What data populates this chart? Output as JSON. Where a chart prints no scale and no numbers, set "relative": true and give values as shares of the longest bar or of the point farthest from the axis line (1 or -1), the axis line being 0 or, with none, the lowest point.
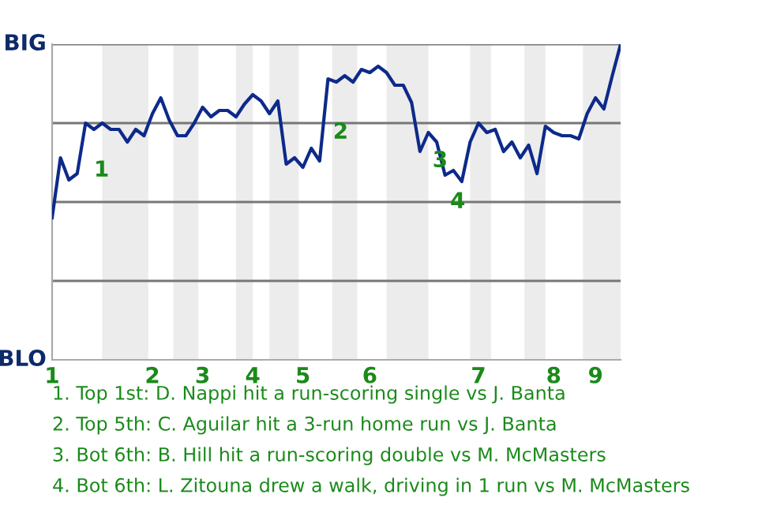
{
  "chart_data": {
    "type": "line",
    "relative": true,
    "categories": [
      "1",
      null,
      null,
      null,
      null,
      null,
      null,
      null,
      null,
      null,
      null,
      null,
      "2",
      null,
      null,
      null,
      null,
      null,
      "3",
      null,
      null,
      null,
      null,
      null,
      "4",
      null,
      null,
      null,
      null,
      null,
      "5",
      null,
      null,
      null,
      null,
      null,
      null,
      null,
      "6",
      null,
      null,
      null,
      null,
      null,
      null,
      null,
      null,
      null,
      null,
      null,
      null,
      "7",
      null,
      null,
      null,
      null,
      null,
      null,
      null,
      null,
      "8",
      null,
      null,
      null,
      null,
      "9",
      null,
      null,
      null
    ],
    "series": [
      {
        "color": "#0d2a8a",
        "values": [
          0.45,
          0.64,
          0.57,
          0.59,
          0.75,
          0.73,
          0.75,
          0.73,
          0.73,
          0.69,
          0.73,
          0.71,
          0.78,
          0.83,
          0.76,
          0.71,
          0.71,
          0.75,
          0.8,
          0.77,
          0.79,
          0.79,
          0.77,
          0.81,
          0.84,
          0.82,
          0.78,
          0.82,
          0.62,
          0.64,
          0.61,
          0.67,
          0.63,
          0.89,
          0.88,
          0.9,
          0.88,
          0.92,
          0.91,
          0.93,
          0.91,
          0.87,
          0.87,
          0.815,
          0.66,
          0.72,
          0.69,
          0.585,
          0.6,
          0.565,
          0.69,
          0.75,
          0.72,
          0.73,
          0.66,
          0.69,
          0.64,
          0.68,
          0.59,
          0.74,
          0.72,
          0.71,
          0.71,
          0.7,
          0.78,
          0.83,
          0.795,
          0.9,
          1.0
        ]
      }
    ],
    "ref_lines": [
      {
        "axis": "y",
        "value": 0.25,
        "color": "#777777"
      },
      {
        "axis": "y",
        "value": 0.5,
        "color": "#777777"
      },
      {
        "axis": "y",
        "value": 0.75,
        "color": "#777777"
      },
      {
        "axis": "y",
        "value": 1,
        "color": "#777777"
      }
    ],
    "annotations": [
      "BIG",
      "BLO",
      "1",
      "2",
      "3",
      "4",
      "1. Top 1st: D. Nappi hit a run-scoring single vs J. Banta",
      "2. Top 5th: C. Aguilar hit a 3-run home run vs J. Banta",
      "3. Bot 6th: B. Hill hit a run-scoring double vs M. McMasters",
      "4. Bot 6th: L. Zitouna drew a walk, driving in 1 run vs M. McMasters"
    ]
  }
}
